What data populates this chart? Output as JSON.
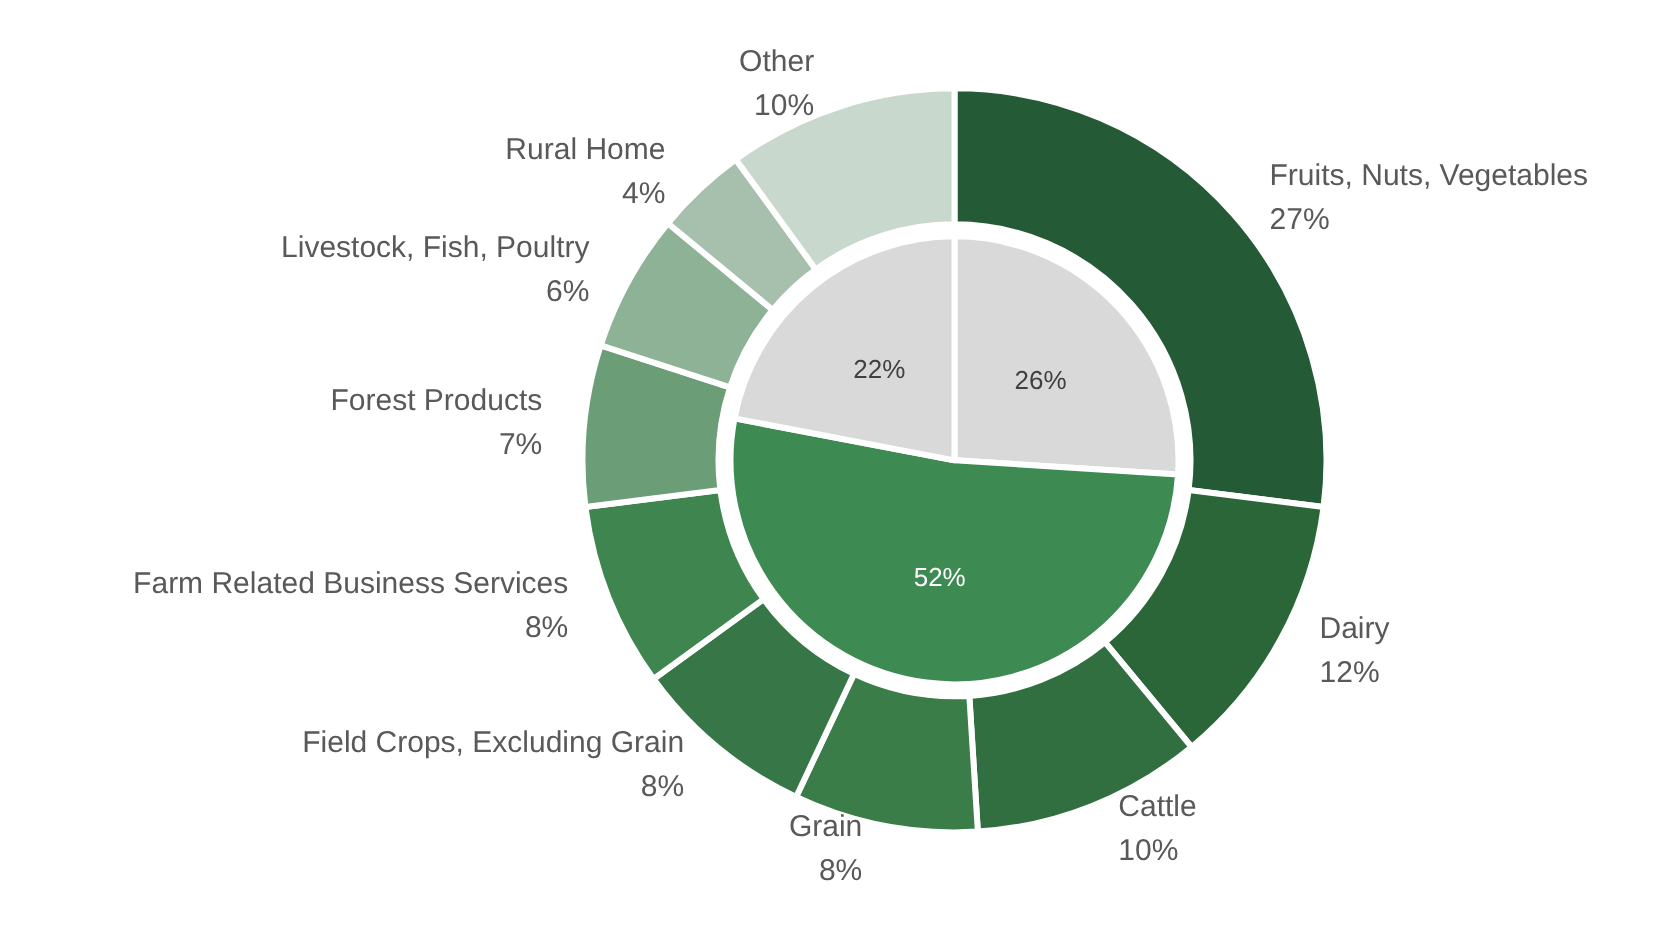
{
  "chart_data": [
    {
      "type": "pie",
      "categories": [
        null,
        null,
        null
      ],
      "values": [
        26,
        52,
        22
      ],
      "colors": [
        "#d9d9d9",
        "#3d8a53",
        "#d9d9d9"
      ],
      "value_labels": [
        "26%",
        "52%",
        "22%"
      ]
    },
    {
      "type": "donut",
      "categories": [
        "Fruits, Nuts, Vegetables",
        "Dairy",
        "Cattle",
        "Grain",
        "Field Crops, Excluding Grain",
        "Farm Related Business Services",
        "Forest Products",
        "Livestock, Fish, Poultry",
        "Rural Home",
        "Other"
      ],
      "values": [
        27,
        12,
        10,
        8,
        8,
        8,
        7,
        6,
        4,
        10
      ],
      "colors": [
        "#245a35",
        "#2b6639",
        "#316e40",
        "#3a7d49",
        "#367647",
        "#3e8550",
        "#6b9d76",
        "#8db296",
        "#a7bfad",
        "#c9d8cc"
      ],
      "value_labels": [
        "27%",
        "12%",
        "10%",
        "8%",
        "8%",
        "8%",
        "7%",
        "6%",
        "4%",
        "10%"
      ]
    }
  ]
}
